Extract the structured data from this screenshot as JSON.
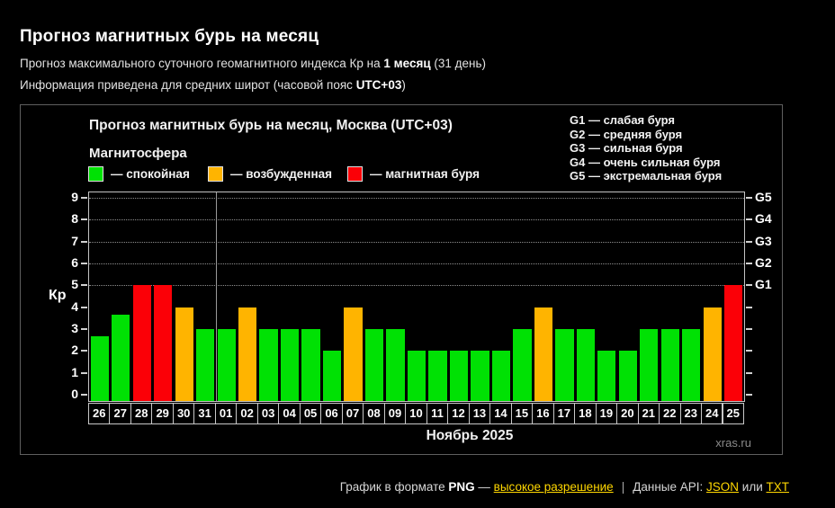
{
  "page": {
    "title": "Прогноз магнитных бурь на месяц",
    "subtitle_prefix": "Прогноз максимального суточного геомагнитного индекса Кр на ",
    "subtitle_bold": "1 месяц",
    "subtitle_suffix": " (31 день)",
    "info_prefix": "Информация приведена для средних широт (часовой пояс ",
    "info_bold": "UTC+03",
    "info_suffix": ")"
  },
  "chart": {
    "title": "Прогноз магнитных бурь на месяц, Москва (UTC+03)",
    "legend_title": "Магнитосфера",
    "legend": [
      {
        "key": "quiet",
        "label": "— спокойная",
        "color": "#00e104"
      },
      {
        "key": "unsettled",
        "label": "— возбужденная",
        "color": "#ffb400"
      },
      {
        "key": "storm",
        "label": "— магнитная буря",
        "color": "#fb0007"
      }
    ],
    "g_legend": [
      "G1 — слабая буря",
      "G2 — средняя буря",
      "G3 — сильная буря",
      "G4 — очень сильная буря",
      "G5 — экстремальная буря"
    ],
    "status_colors": {
      "quiet": "#00e104",
      "unsettled": "#ffb400",
      "storm": "#fb0007"
    },
    "y_label": "Кр",
    "watermark": "xras.ru"
  },
  "chart_data": {
    "type": "bar",
    "title": "Прогноз магнитных бурь на месяц, Москва (UTC+03)",
    "ylabel": "Кр",
    "ylim": [
      0,
      9
    ],
    "y_ticks": [
      0,
      1,
      2,
      3,
      4,
      5,
      6,
      7,
      8,
      9
    ],
    "gridlines_at": [
      5,
      6,
      7,
      8,
      9
    ],
    "right_axis_labels": [
      {
        "value": 5,
        "label": "G1"
      },
      {
        "value": 6,
        "label": "G2"
      },
      {
        "value": 7,
        "label": "G3"
      },
      {
        "value": 8,
        "label": "G4"
      },
      {
        "value": 9,
        "label": "G5"
      }
    ],
    "categories": [
      "26",
      "27",
      "28",
      "29",
      "30",
      "31",
      "01",
      "02",
      "03",
      "04",
      "05",
      "06",
      "07",
      "08",
      "09",
      "10",
      "11",
      "12",
      "13",
      "14",
      "15",
      "16",
      "17",
      "18",
      "19",
      "20",
      "21",
      "22",
      "23",
      "24",
      "25"
    ],
    "values": [
      2.67,
      3.67,
      5,
      5,
      4,
      3,
      3,
      4,
      3,
      3,
      3,
      2,
      4,
      3,
      3,
      2,
      2,
      2,
      2,
      2,
      3,
      4,
      3,
      3,
      2,
      2,
      3,
      3,
      3,
      4,
      5
    ],
    "statuses": [
      "quiet",
      "quiet",
      "storm",
      "storm",
      "unsettled",
      "quiet",
      "quiet",
      "unsettled",
      "quiet",
      "quiet",
      "quiet",
      "quiet",
      "unsettled",
      "quiet",
      "quiet",
      "quiet",
      "quiet",
      "quiet",
      "quiet",
      "quiet",
      "quiet",
      "unsettled",
      "quiet",
      "quiet",
      "quiet",
      "quiet",
      "quiet",
      "quiet",
      "quiet",
      "unsettled",
      "storm"
    ],
    "month_boundary_after": "31",
    "month_label": "Ноябрь 2025",
    "legend_position": "top"
  },
  "footer": {
    "text_prefix": "График в формате ",
    "png": "PNG",
    "dash": " — ",
    "link_resolution": "высокое разрешение",
    "separator": "|",
    "api_prefix": "Данные API: ",
    "link_json": "JSON",
    "or_text": " или ",
    "link_txt": "TXT",
    "link_color": "#ffd700"
  }
}
